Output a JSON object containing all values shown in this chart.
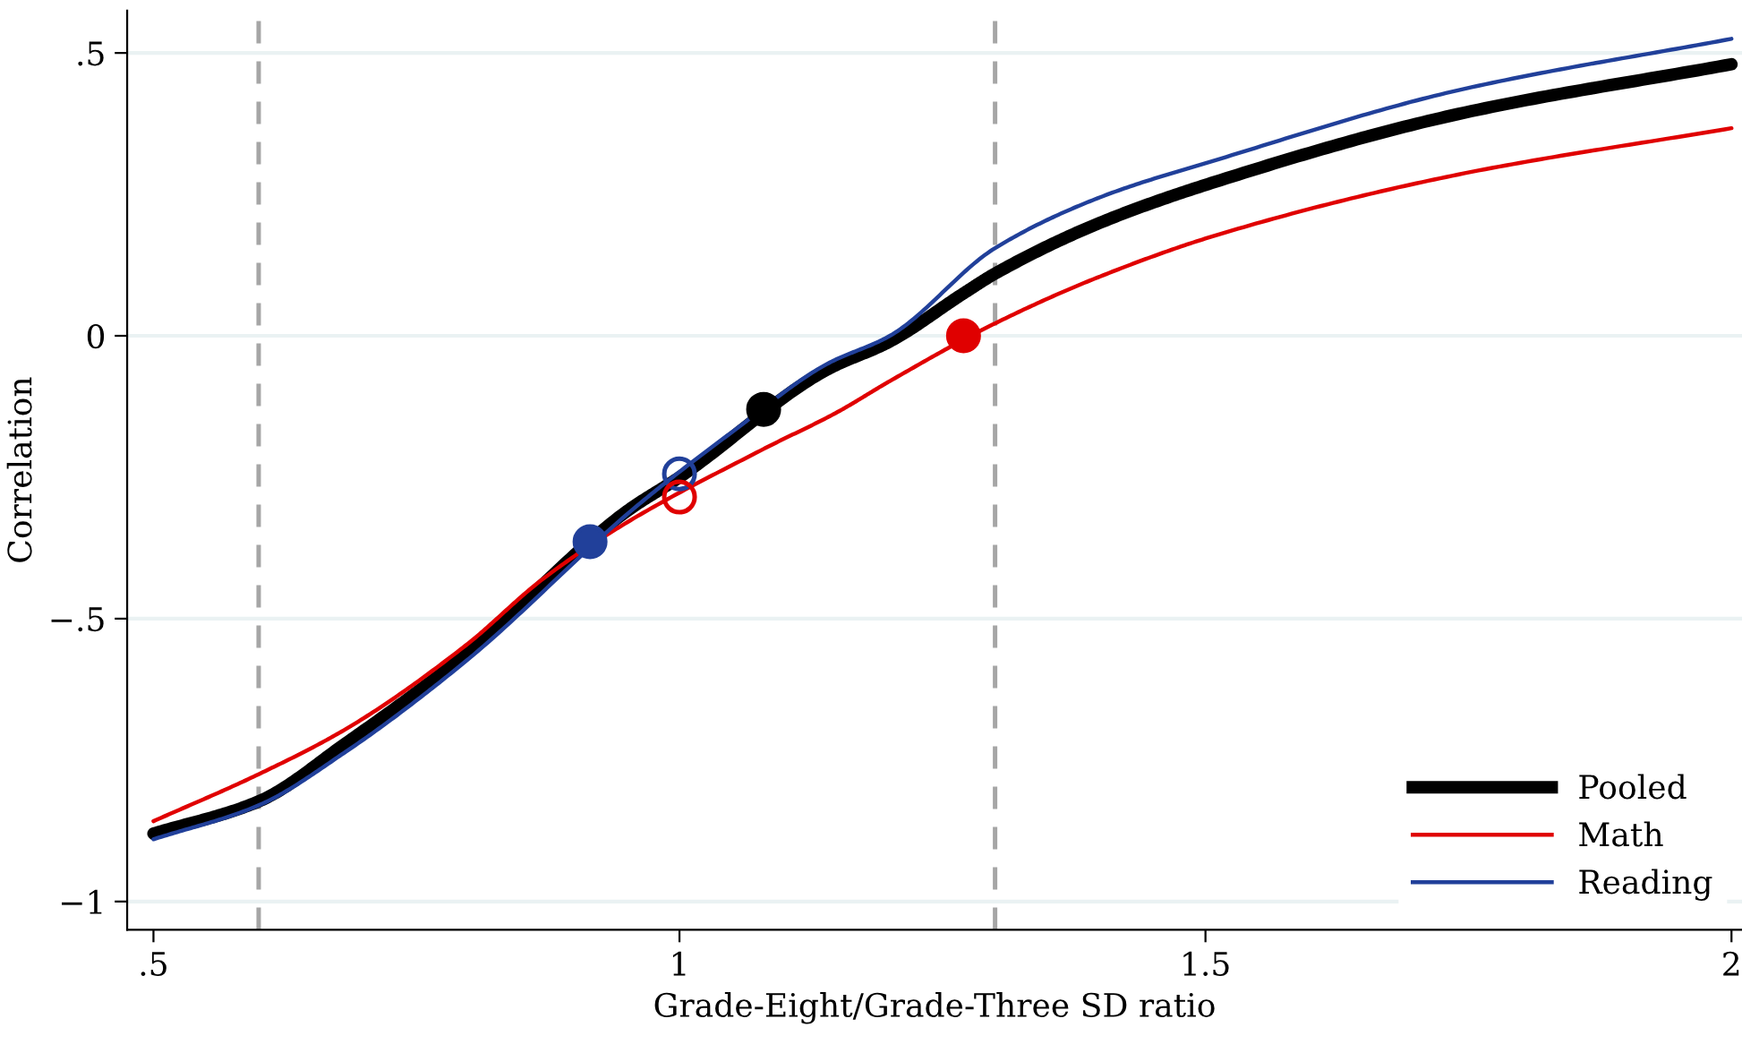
{
  "chart_data": {
    "type": "line",
    "xlabel": "Grade-Eight/Grade-Three SD ratio",
    "ylabel": "Correlation",
    "xlim": [
      0.475,
      2.01
    ],
    "ylim": [
      -1.05,
      0.575
    ],
    "xticks": [
      {
        "value": 0.5,
        "label": ".5"
      },
      1,
      1.5,
      2
    ],
    "yticks": [
      {
        "value": -1,
        "label": "−1"
      },
      {
        "value": -0.5,
        "label": "−.5"
      },
      0,
      {
        "value": 0.5,
        "label": ".5"
      }
    ],
    "grid": "y",
    "legend": "bottom right",
    "ref_lines": [
      {
        "axis": "x",
        "value": 0.6,
        "color": "#a6a6a6",
        "line_style": "dashed"
      },
      {
        "axis": "x",
        "value": 1.3,
        "color": "#a6a6a6",
        "line_style": "dashed"
      }
    ],
    "series": [
      {
        "name": "Pooled",
        "color": "#000000",
        "x": [
          0.5,
          0.6,
          0.683,
          0.797,
          0.95,
          1.0,
          1.14,
          1.2,
          1.27,
          1.3,
          1.4,
          1.514,
          1.74,
          2.0
        ],
        "values": [
          -0.88,
          -0.823,
          -0.72,
          -0.563,
          -0.31,
          -0.25,
          -0.06,
          -0.01,
          0.075,
          0.11,
          0.2,
          0.275,
          0.392,
          0.48
        ]
      },
      {
        "name": "Math",
        "color": "#e00000",
        "x": [
          0.5,
          0.6,
          0.683,
          0.797,
          0.87,
          0.95,
          1.08,
          1.15,
          1.2,
          1.3,
          1.4,
          1.514,
          1.74,
          2.0
        ],
        "values": [
          -0.858,
          -0.775,
          -0.695,
          -0.547,
          -0.43,
          -0.33,
          -0.2,
          -0.135,
          -0.08,
          0.022,
          0.105,
          0.18,
          0.285,
          0.367
        ]
      },
      {
        "name": "Reading",
        "color": "#21409a",
        "x": [
          0.5,
          0.6,
          0.683,
          0.797,
          0.96,
          1.05,
          1.14,
          1.2,
          1.3,
          1.4,
          1.514,
          1.74,
          2.0
        ],
        "values": [
          -0.89,
          -0.83,
          -0.735,
          -0.575,
          -0.3,
          -0.17,
          -0.05,
          0.0,
          0.155,
          0.245,
          0.313,
          0.434,
          0.525
        ]
      },
      {
        "type": "scatter",
        "colors": [
          "#21409a",
          "#000000",
          "#e00000"
        ],
        "x": [
          0.915,
          1.08,
          1.27
        ],
        "values": [
          -0.364,
          -0.13,
          0.0
        ],
        "marker": "circle"
      },
      {
        "type": "scatter",
        "colors": [
          "#21409a",
          "#e00000"
        ],
        "x": [
          1.0,
          1.0
        ],
        "values": [
          -0.244,
          -0.285
        ],
        "marker": "circle"
      }
    ]
  }
}
